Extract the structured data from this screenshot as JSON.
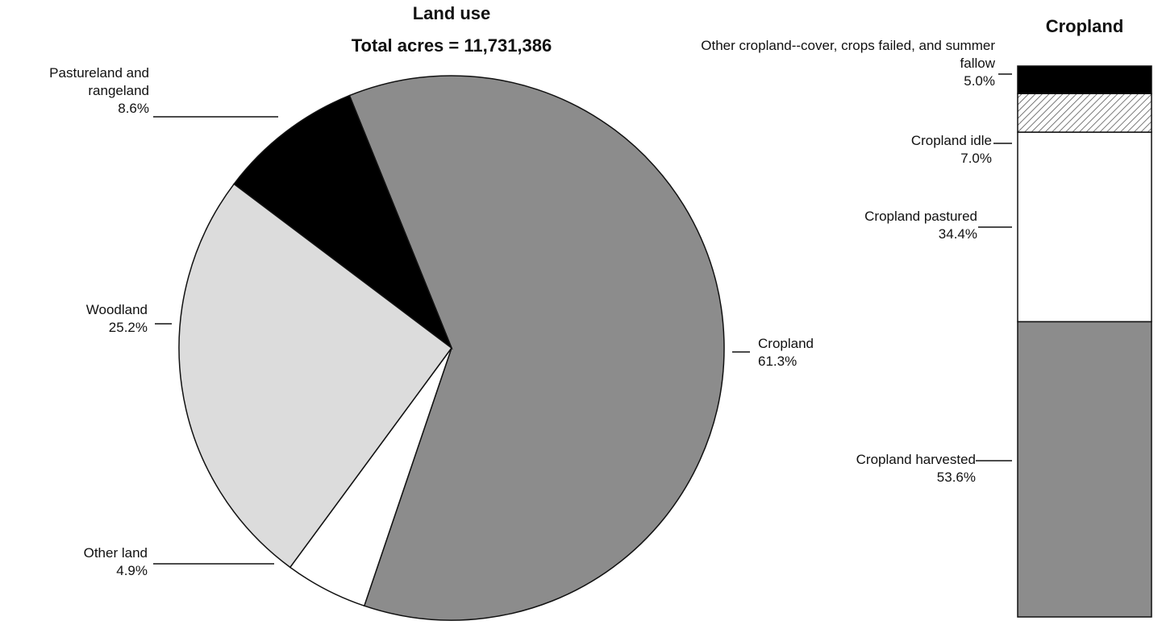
{
  "chart_data": [
    {
      "type": "pie",
      "title": "Land use",
      "subtitle": "Total acres = 11,731,386",
      "categories": [
        "Cropland",
        "Other land",
        "Woodland",
        "Pastureland and rangeland"
      ],
      "values": [
        61.3,
        4.9,
        25.2,
        8.6
      ],
      "value_labels": [
        "61.3%",
        "4.9%",
        "25.2%",
        "8.6%"
      ],
      "colors": [
        "#8c8c8c",
        "#ffffff",
        "#dcdcdc",
        "#000000"
      ]
    },
    {
      "type": "stacked-bar",
      "title": "Cropland",
      "series": [
        {
          "name": "Cropland harvested",
          "color": "#8c8c8c",
          "values": [
            53.6
          ],
          "value_labels": [
            "53.6%"
          ]
        },
        {
          "name": "Cropland pastured",
          "color": "#ffffff",
          "values": [
            34.4
          ],
          "value_labels": [
            "34.4%"
          ]
        },
        {
          "name": "Cropland idle",
          "color": "#ffffff",
          "hatch": true,
          "values": [
            7.0
          ],
          "value_labels": [
            "7.0%"
          ]
        },
        {
          "name": "Other cropland--cover, crops failed, and summer fallow",
          "color": "#000000",
          "values": [
            5.0
          ],
          "value_labels": [
            "5.0%"
          ]
        }
      ]
    }
  ]
}
